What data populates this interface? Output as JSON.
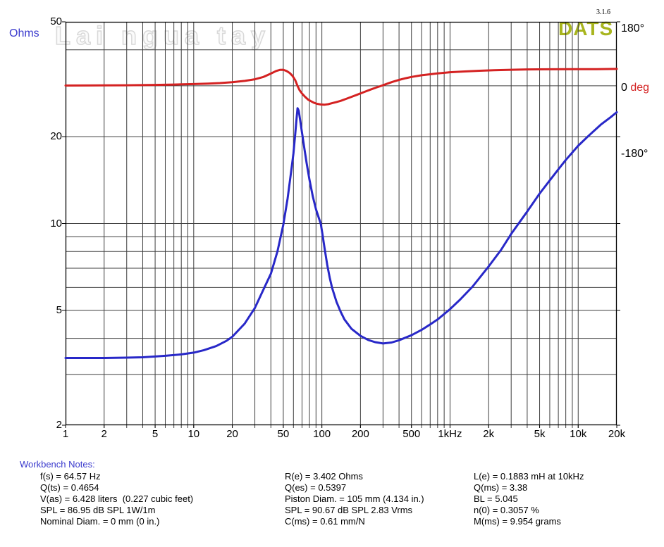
{
  "header": {
    "version": "3.1.6",
    "logo": "DATS",
    "watermark": "Lai ngua tay"
  },
  "axis_labels": {
    "y_unit": "Ohms",
    "phase_top": "180°",
    "phase_zero_value": "0",
    "phase_zero_unit": " deg",
    "phase_bottom": "-180°"
  },
  "chart_data": {
    "type": "line",
    "x_axis": {
      "scale": "log",
      "unit": "Hz",
      "min": 1,
      "max": 20000,
      "gridlines": [
        2,
        3,
        4,
        5,
        6,
        7,
        8,
        9,
        10,
        20,
        30,
        40,
        50,
        60,
        70,
        80,
        90,
        100,
        200,
        300,
        400,
        500,
        600,
        700,
        800,
        900,
        1000,
        2000,
        3000,
        4000,
        5000,
        6000,
        7000,
        8000,
        9000,
        10000
      ],
      "ticks": [
        {
          "f": 1,
          "label": "1"
        },
        {
          "f": 2,
          "label": "2"
        },
        {
          "f": 5,
          "label": "5"
        },
        {
          "f": 10,
          "label": "10"
        },
        {
          "f": 20,
          "label": "20"
        },
        {
          "f": 50,
          "label": "50"
        },
        {
          "f": 100,
          "label": "100"
        },
        {
          "f": 200,
          "label": "200"
        },
        {
          "f": 500,
          "label": "500"
        },
        {
          "f": 1000,
          "label": "1kHz"
        },
        {
          "f": 2000,
          "label": "2k"
        },
        {
          "f": 5000,
          "label": "5k"
        },
        {
          "f": 10000,
          "label": "10k"
        },
        {
          "f": 20000,
          "label": "20k"
        }
      ]
    },
    "y_axis": {
      "scale": "log",
      "unit": "Ohms",
      "min": 2,
      "max": 50,
      "gridlines": [
        3,
        4,
        5,
        6,
        7,
        8,
        9,
        10,
        20,
        30,
        40
      ],
      "ticks": [
        {
          "v": 50,
          "label": "50"
        },
        {
          "v": 20,
          "label": "20"
        },
        {
          "v": 10,
          "label": "10"
        },
        {
          "v": 5,
          "label": "5"
        },
        {
          "v": 2,
          "label": "2"
        }
      ]
    },
    "phase_axis": {
      "unit": "deg",
      "labels": [
        "180°",
        "0 deg",
        "-180°"
      ]
    },
    "series": [
      {
        "name": "impedance",
        "unit": "Ohms",
        "color": "#2828c8",
        "points": [
          [
            1,
            3.42
          ],
          [
            1.5,
            3.42
          ],
          [
            2,
            3.42
          ],
          [
            3,
            3.43
          ],
          [
            4,
            3.44
          ],
          [
            5,
            3.46
          ],
          [
            6,
            3.48
          ],
          [
            8,
            3.52
          ],
          [
            10,
            3.57
          ],
          [
            12,
            3.64
          ],
          [
            15,
            3.76
          ],
          [
            18,
            3.92
          ],
          [
            20,
            4.05
          ],
          [
            25,
            4.5
          ],
          [
            30,
            5.1
          ],
          [
            35,
            5.9
          ],
          [
            40,
            6.7
          ],
          [
            45,
            8.0
          ],
          [
            50,
            9.9
          ],
          [
            54,
            12.2
          ],
          [
            57,
            14.6
          ],
          [
            60,
            17.5
          ],
          [
            62,
            20.5
          ],
          [
            63.5,
            23.2
          ],
          [
            64.6,
            25.1
          ],
          [
            66,
            24.6
          ],
          [
            67.5,
            23.0
          ],
          [
            70,
            20.6
          ],
          [
            73,
            18.2
          ],
          [
            76,
            16.2
          ],
          [
            80,
            14.2
          ],
          [
            85,
            12.4
          ],
          [
            90,
            11.2
          ],
          [
            95,
            10.4
          ],
          [
            98,
            10.0
          ],
          [
            101,
            9.2
          ],
          [
            105,
            8.2
          ],
          [
            110,
            7.2
          ],
          [
            115,
            6.5
          ],
          [
            120,
            6.0
          ],
          [
            130,
            5.35
          ],
          [
            140,
            4.95
          ],
          [
            150,
            4.65
          ],
          [
            170,
            4.32
          ],
          [
            200,
            4.08
          ],
          [
            230,
            3.95
          ],
          [
            260,
            3.88
          ],
          [
            300,
            3.84
          ],
          [
            350,
            3.87
          ],
          [
            400,
            3.94
          ],
          [
            500,
            4.1
          ],
          [
            600,
            4.28
          ],
          [
            700,
            4.47
          ],
          [
            800,
            4.65
          ],
          [
            1000,
            5.05
          ],
          [
            1200,
            5.45
          ],
          [
            1500,
            6.05
          ],
          [
            2000,
            7.1
          ],
          [
            2500,
            8.1
          ],
          [
            3000,
            9.2
          ],
          [
            4000,
            11.0
          ],
          [
            5000,
            12.7
          ],
          [
            6000,
            14.1
          ],
          [
            7000,
            15.4
          ],
          [
            8000,
            16.6
          ],
          [
            10000,
            18.6
          ],
          [
            12000,
            20.1
          ],
          [
            15000,
            22.0
          ],
          [
            18000,
            23.4
          ],
          [
            20000,
            24.3
          ]
        ]
      },
      {
        "name": "phase",
        "unit": "deg",
        "color": "#d42222",
        "points": [
          [
            1,
            1
          ],
          [
            2,
            1.5
          ],
          [
            3,
            2
          ],
          [
            5,
            3
          ],
          [
            7,
            4
          ],
          [
            10,
            5.5
          ],
          [
            13,
            7
          ],
          [
            16,
            8.5
          ],
          [
            20,
            11
          ],
          [
            25,
            15
          ],
          [
            30,
            20
          ],
          [
            35,
            27
          ],
          [
            40,
            37
          ],
          [
            44,
            45
          ],
          [
            47,
            48
          ],
          [
            50,
            48.5
          ],
          [
            53,
            45
          ],
          [
            56,
            39
          ],
          [
            59,
            30
          ],
          [
            62,
            17
          ],
          [
            64.6,
            0
          ],
          [
            67,
            -13
          ],
          [
            70,
            -23
          ],
          [
            74,
            -33
          ],
          [
            78,
            -41
          ],
          [
            82,
            -46
          ],
          [
            87,
            -51
          ],
          [
            92,
            -54
          ],
          [
            98,
            -56
          ],
          [
            105,
            -56.5
          ],
          [
            112,
            -55
          ],
          [
            120,
            -52
          ],
          [
            130,
            -48.5
          ],
          [
            140,
            -45
          ],
          [
            155,
            -39
          ],
          [
            170,
            -33
          ],
          [
            190,
            -26
          ],
          [
            215,
            -18
          ],
          [
            240,
            -11
          ],
          [
            265,
            -5
          ],
          [
            290,
            0
          ],
          [
            320,
            6
          ],
          [
            355,
            12
          ],
          [
            400,
            18
          ],
          [
            450,
            23
          ],
          [
            500,
            27
          ],
          [
            600,
            32
          ],
          [
            700,
            35
          ],
          [
            800,
            37.5
          ],
          [
            1000,
            41
          ],
          [
            1300,
            43.5
          ],
          [
            1700,
            45.5
          ],
          [
            2200,
            47
          ],
          [
            3000,
            48.5
          ],
          [
            4000,
            49.5
          ],
          [
            6000,
            50
          ],
          [
            9000,
            50.5
          ],
          [
            14000,
            50.5
          ],
          [
            20000,
            51
          ]
        ]
      }
    ]
  },
  "notes": {
    "title": "Workbench Notes:",
    "columns": [
      [
        "f(s) = 64.57 Hz",
        "Q(ts) = 0.4654",
        "V(as) = 6.428 liters  (0.227 cubic feet)",
        "SPL = 86.95 dB SPL 1W/1m",
        "Nominal Diam. = 0 mm (0 in.)"
      ],
      [
        "R(e) = 3.402 Ohms",
        "Q(es) = 0.5397",
        "Piston Diam. = 105 mm (4.134 in.)",
        "SPL = 90.67 dB SPL 2.83 Vrms",
        "C(ms) = 0.61 mm/N"
      ],
      [
        "L(e) = 0.1883 mH at 10kHz",
        "Q(ms) = 3.38",
        "BL = 5.045",
        "n(0) = 0.3057 %",
        "M(ms) = 9.954 grams"
      ]
    ]
  },
  "colors": {
    "impedance": "#2828c8",
    "phase": "#d42222",
    "grid": "#3f3f3f",
    "border": "#000000",
    "accent_blue": "#3a3acd",
    "logo_green": "#a8b51e"
  }
}
